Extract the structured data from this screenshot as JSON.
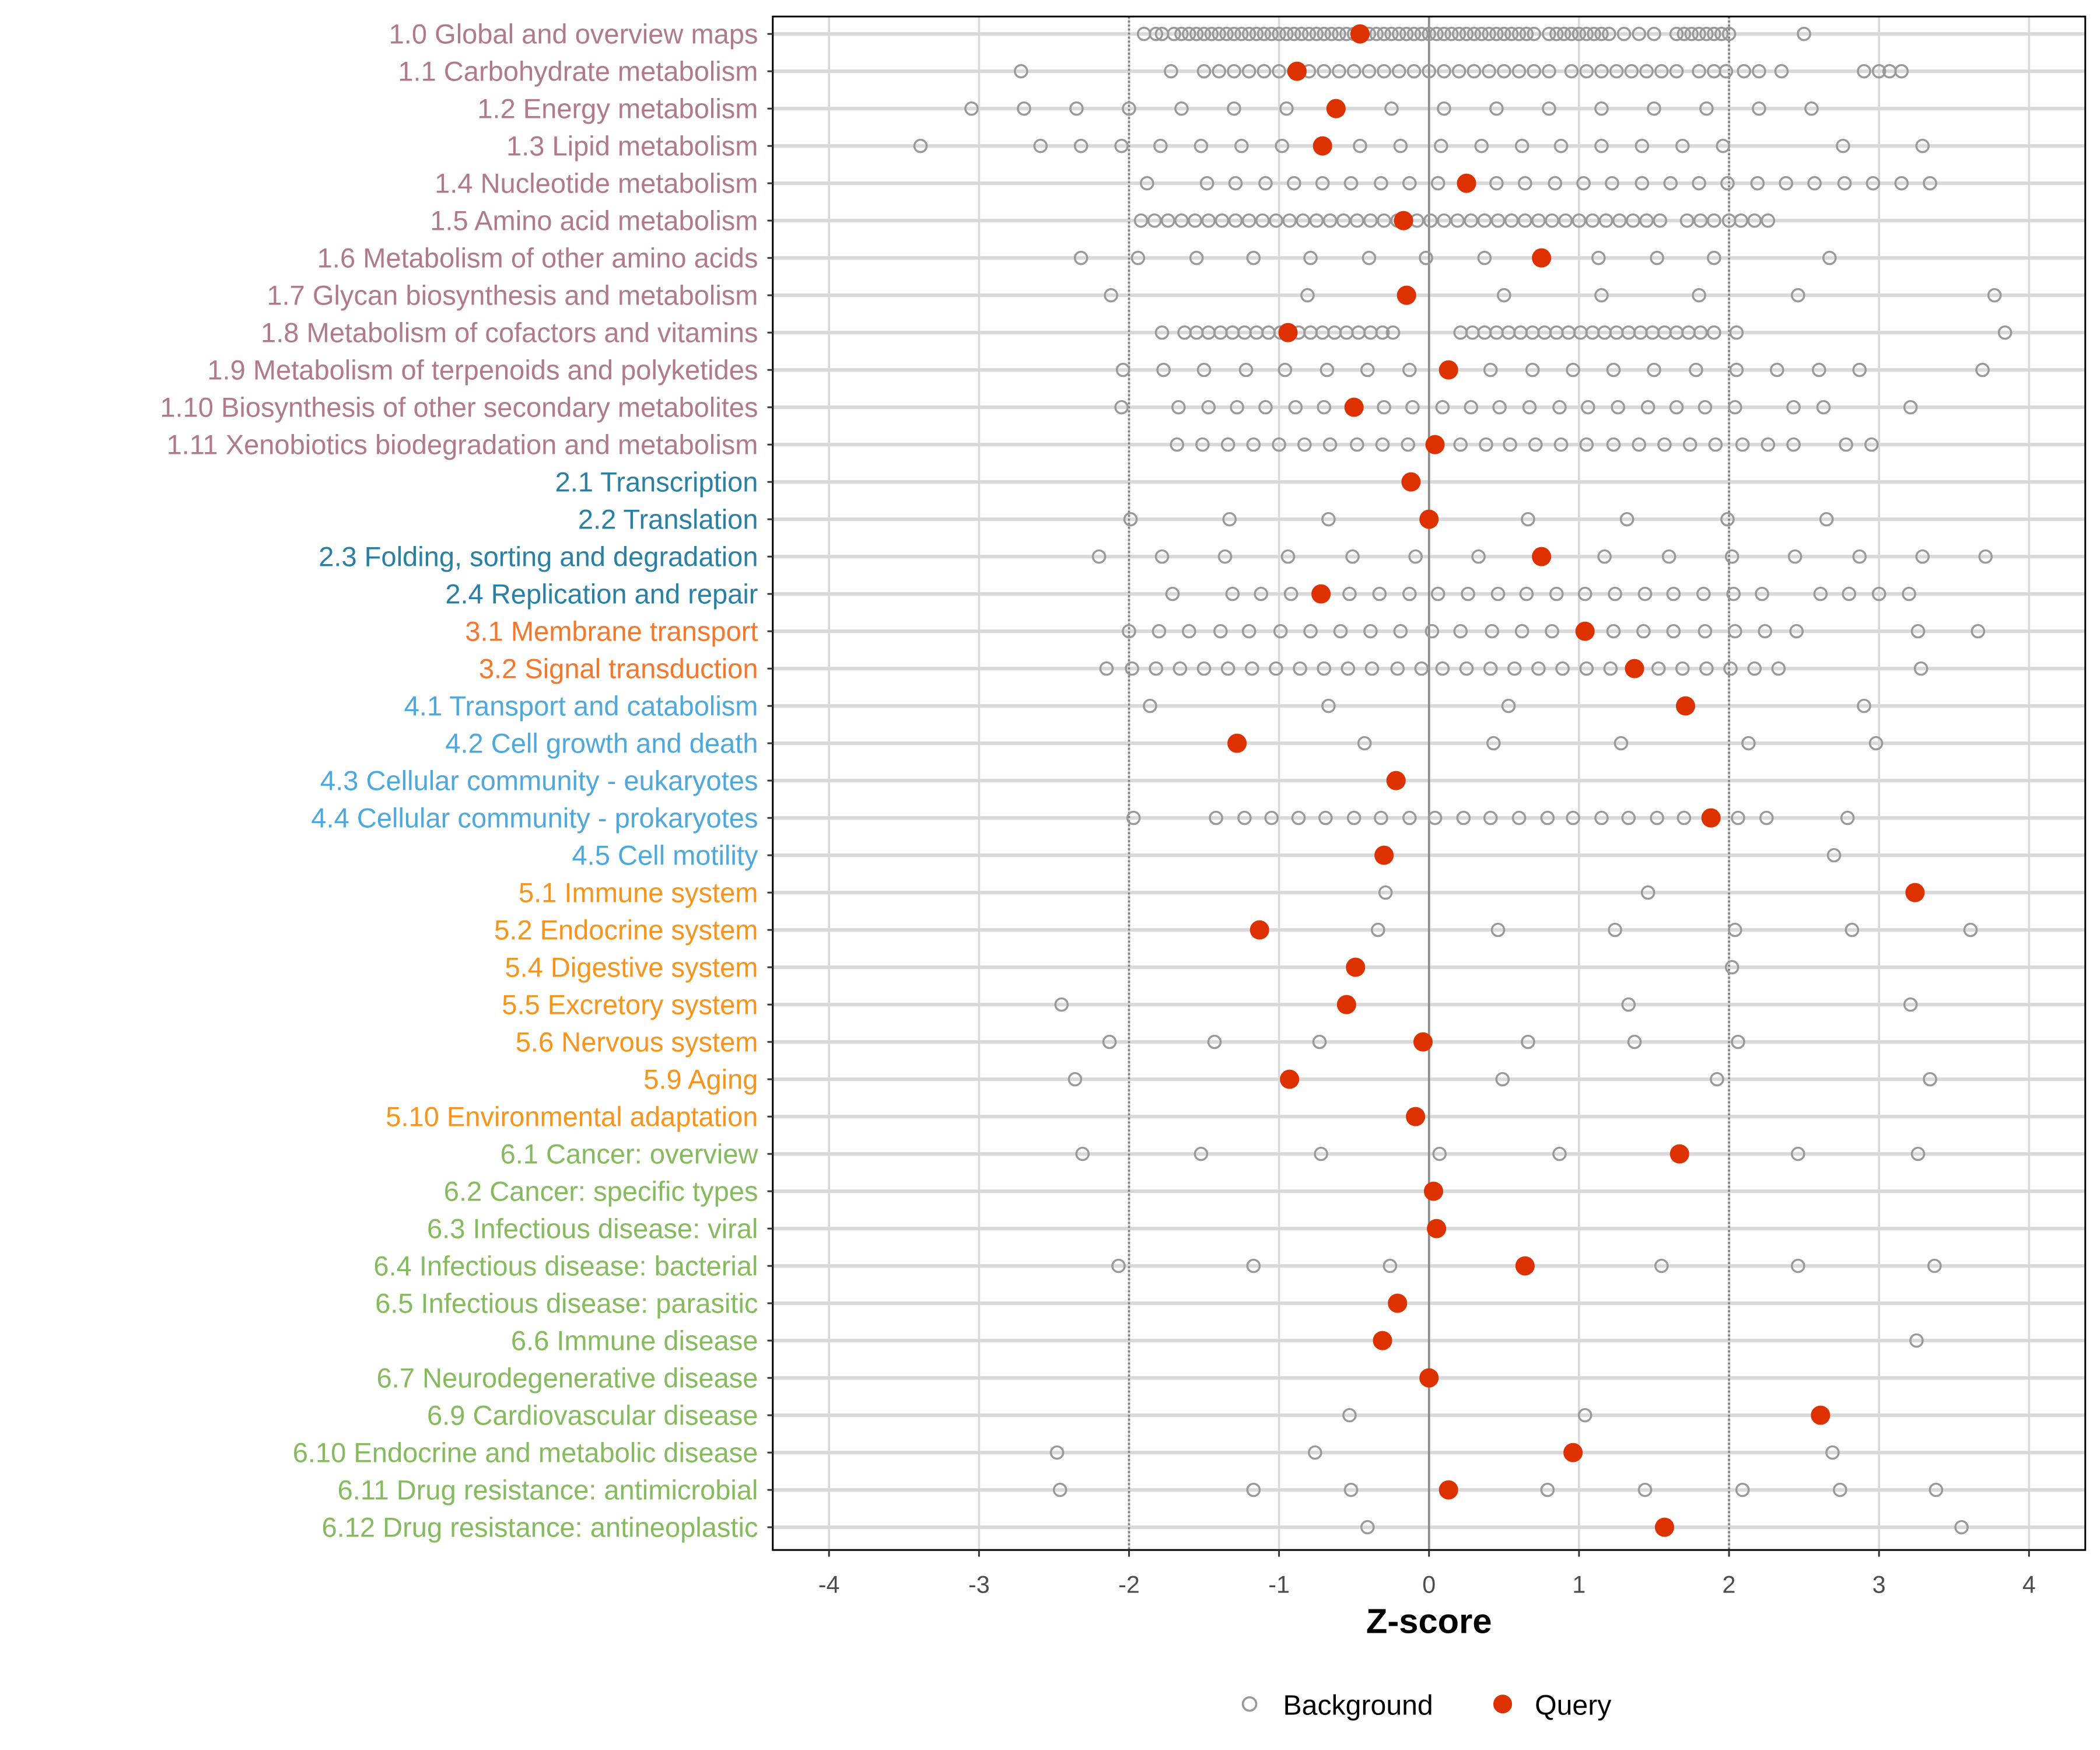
{
  "chart_data": {
    "type": "scatter",
    "xlabel": "Z-score",
    "xlim": [
      -4.5,
      4.3
    ],
    "xticks": [
      -4,
      -3,
      -2,
      -1,
      0,
      1,
      2,
      3,
      4
    ],
    "xtick_labels": [
      "-4",
      "-3",
      "-2",
      "-1",
      "0",
      "1",
      "2",
      "3",
      "4"
    ],
    "reference_lines": {
      "solid": [
        0
      ],
      "dotted": [
        -2,
        2
      ]
    },
    "grid": true,
    "legend": {
      "placement": "bottom",
      "entries": [
        "Background",
        "Query"
      ]
    },
    "colors": {
      "query": "#DD3100",
      "background": "#999999",
      "groups": {
        "1": "#B07A89",
        "2": "#2A7FA5",
        "3": "#F4772E",
        "4": "#4EA8DC",
        "5": "#F7941D",
        "6": "#86BA5E"
      }
    },
    "rows": [
      {
        "label": "1.0 Global and overview maps",
        "group": "1",
        "query": -0.46,
        "background": [
          -1.9,
          -1.82,
          -1.78,
          -1.7,
          -1.65,
          -1.6,
          -1.55,
          -1.5,
          -1.45,
          -1.4,
          -1.35,
          -1.3,
          -1.25,
          -1.2,
          -1.15,
          -1.1,
          -1.05,
          -1.0,
          -0.95,
          -0.9,
          -0.85,
          -0.8,
          -0.75,
          -0.7,
          -0.65,
          -0.6,
          -0.55,
          -0.5,
          -0.45,
          -0.4,
          -0.35,
          -0.3,
          -0.25,
          -0.2,
          -0.15,
          -0.1,
          -0.05,
          0,
          0.05,
          0.1,
          0.15,
          0.2,
          0.25,
          0.3,
          0.35,
          0.4,
          0.45,
          0.5,
          0.55,
          0.6,
          0.65,
          0.7,
          0.8,
          0.85,
          0.9,
          0.95,
          1.0,
          1.05,
          1.1,
          1.15,
          1.2,
          1.3,
          1.4,
          1.5,
          1.65,
          1.7,
          1.75,
          1.8,
          1.85,
          1.9,
          1.95,
          2.0,
          2.5
        ]
      },
      {
        "label": "1.1 Carbohydrate metabolism",
        "group": "1",
        "query": -0.88,
        "background": [
          -2.72,
          -1.72,
          -1.5,
          -1.4,
          -1.3,
          -1.2,
          -1.1,
          -1.0,
          -0.9,
          -0.8,
          -0.7,
          -0.6,
          -0.5,
          -0.4,
          -0.3,
          -0.2,
          -0.1,
          0,
          0.1,
          0.2,
          0.3,
          0.4,
          0.5,
          0.6,
          0.7,
          0.8,
          0.95,
          1.05,
          1.15,
          1.25,
          1.35,
          1.45,
          1.55,
          1.65,
          1.8,
          1.9,
          1.98,
          2.1,
          2.2,
          2.35,
          2.9,
          3.0,
          3.07,
          3.15
        ]
      },
      {
        "label": "1.2 Energy metabolism",
        "group": "1",
        "query": -0.62,
        "background": [
          -3.05,
          -2.7,
          -2.35,
          -2.0,
          -1.65,
          -1.3,
          -0.95,
          -0.25,
          0.1,
          0.45,
          0.8,
          1.15,
          1.5,
          1.85,
          2.2,
          2.55
        ]
      },
      {
        "label": "1.3 Lipid metabolism",
        "group": "1",
        "query": -0.71,
        "background": [
          -3.39,
          -2.59,
          -2.32,
          -2.05,
          -1.79,
          -1.52,
          -1.25,
          -0.98,
          -0.46,
          -0.19,
          0.08,
          0.35,
          0.62,
          0.88,
          1.15,
          1.42,
          1.69,
          1.96,
          2.76,
          3.29
        ]
      },
      {
        "label": "1.4 Nucleotide metabolism",
        "group": "1",
        "query": 0.25,
        "background": [
          -1.88,
          -1.48,
          -1.29,
          -1.09,
          -0.9,
          -0.71,
          -0.52,
          -0.32,
          -0.13,
          0.06,
          0.45,
          0.64,
          0.84,
          1.03,
          1.22,
          1.42,
          1.61,
          1.8,
          1.99,
          2.19,
          2.38,
          2.57,
          2.77,
          2.96,
          3.15,
          3.34
        ]
      },
      {
        "label": "1.5 Amino acid metabolism",
        "group": "1",
        "query": -0.17,
        "background": [
          -1.92,
          -1.83,
          -1.74,
          -1.65,
          -1.56,
          -1.47,
          -1.38,
          -1.29,
          -1.2,
          -1.11,
          -1.02,
          -0.93,
          -0.84,
          -0.75,
          -0.66,
          -0.57,
          -0.48,
          -0.39,
          -0.3,
          -0.21,
          -0.08,
          0.01,
          0.1,
          0.19,
          0.28,
          0.37,
          0.46,
          0.55,
          0.64,
          0.73,
          0.82,
          0.91,
          1.0,
          1.09,
          1.18,
          1.27,
          1.36,
          1.45,
          1.54,
          1.72,
          1.81,
          1.9,
          2.0,
          2.08,
          2.17,
          2.26
        ]
      },
      {
        "label": "1.6 Metabolism of other amino acids",
        "group": "1",
        "query": 0.75,
        "background": [
          -2.32,
          -1.94,
          -1.55,
          -1.17,
          -0.79,
          -0.4,
          -0.02,
          0.37,
          1.13,
          1.52,
          1.9,
          2.67
        ]
      },
      {
        "label": "1.7 Glycan biosynthesis and metabolism",
        "group": "1",
        "query": -0.15,
        "background": [
          -2.12,
          -0.81,
          0.5,
          1.15,
          1.8,
          2.46,
          3.77
        ]
      },
      {
        "label": "1.8 Metabolism of cofactors and vitamins",
        "group": "1",
        "query": -0.94,
        "background": [
          -1.78,
          -1.63,
          -1.55,
          -1.47,
          -1.39,
          -1.31,
          -1.23,
          -1.15,
          -1.07,
          -0.99,
          -0.87,
          -0.79,
          -0.71,
          -0.63,
          -0.55,
          -0.47,
          -0.39,
          -0.31,
          -0.24,
          0.21,
          0.29,
          0.37,
          0.45,
          0.53,
          0.61,
          0.69,
          0.77,
          0.85,
          0.93,
          1.01,
          1.09,
          1.17,
          1.25,
          1.33,
          1.41,
          1.49,
          1.57,
          1.65,
          1.73,
          1.81,
          1.9,
          2.05,
          3.84
        ]
      },
      {
        "label": "1.9 Metabolism of terpenoids and polyketides",
        "group": "1",
        "query": 0.13,
        "background": [
          -2.04,
          -1.77,
          -1.5,
          -1.22,
          -0.96,
          -0.68,
          -0.41,
          -0.13,
          0.41,
          0.69,
          0.96,
          1.23,
          1.5,
          1.78,
          2.05,
          2.32,
          2.6,
          2.87,
          3.69
        ]
      },
      {
        "label": "1.10 Biosynthesis of other secondary metabolites",
        "group": "1",
        "query": -0.5,
        "background": [
          -2.05,
          -1.67,
          -1.47,
          -1.28,
          -1.09,
          -0.89,
          -0.7,
          -0.3,
          -0.11,
          0.09,
          0.28,
          0.47,
          0.67,
          0.87,
          1.06,
          1.26,
          1.46,
          1.65,
          1.84,
          2.04,
          2.43,
          2.63,
          3.21
        ]
      },
      {
        "label": "1.11 Xenobiotics biodegradation and metabolism",
        "group": "1",
        "query": 0.04,
        "background": [
          -1.68,
          -1.51,
          -1.34,
          -1.17,
          -1.0,
          -0.83,
          -0.66,
          -0.48,
          -0.31,
          -0.14,
          0.21,
          0.38,
          0.54,
          0.71,
          0.88,
          1.05,
          1.23,
          1.4,
          1.57,
          1.74,
          1.91,
          2.09,
          2.26,
          2.43,
          2.78,
          2.95
        ]
      },
      {
        "label": "2.1 Transcription",
        "group": "2",
        "query": -0.12,
        "background": []
      },
      {
        "label": "2.2 Translation",
        "group": "2",
        "query": 0.0,
        "background": [
          -1.99,
          -1.33,
          -0.67,
          0.66,
          1.32,
          1.99,
          2.65
        ]
      },
      {
        "label": "2.3 Folding, sorting and degradation",
        "group": "2",
        "query": 0.75,
        "background": [
          -2.2,
          -1.78,
          -1.36,
          -0.94,
          -0.51,
          -0.09,
          0.33,
          1.17,
          1.6,
          2.02,
          2.44,
          2.87,
          3.29,
          3.71
        ]
      },
      {
        "label": "2.4 Replication and repair",
        "group": "2",
        "query": -0.72,
        "background": [
          -1.71,
          -1.31,
          -1.12,
          -0.92,
          -0.53,
          -0.33,
          -0.13,
          0.06,
          0.26,
          0.46,
          0.65,
          0.85,
          1.04,
          1.24,
          1.44,
          1.63,
          1.83,
          2.03,
          2.22,
          2.61,
          2.8,
          3.0,
          3.2
        ]
      },
      {
        "label": "3.1 Membrane transport",
        "group": "3",
        "query": 1.04,
        "background": [
          -2.0,
          -1.8,
          -1.6,
          -1.39,
          -1.2,
          -0.99,
          -0.79,
          -0.59,
          -0.39,
          -0.19,
          0.02,
          0.21,
          0.42,
          0.62,
          0.82,
          1.23,
          1.43,
          1.63,
          1.84,
          2.04,
          2.24,
          2.45,
          3.26,
          3.66
        ]
      },
      {
        "label": "3.2 Signal transduction",
        "group": "3",
        "query": 1.37,
        "background": [
          -2.15,
          -1.98,
          -1.82,
          -1.66,
          -1.5,
          -1.34,
          -1.18,
          -1.02,
          -0.86,
          -0.7,
          -0.54,
          -0.38,
          -0.21,
          -0.05,
          0.09,
          0.25,
          0.41,
          0.57,
          0.73,
          0.89,
          1.05,
          1.21,
          1.53,
          1.69,
          1.85,
          2.01,
          2.17,
          2.33,
          3.28
        ]
      },
      {
        "label": "4.1 Transport and catabolism",
        "group": "4",
        "query": 1.71,
        "background": [
          -1.86,
          -0.67,
          0.53,
          2.9
        ]
      },
      {
        "label": "4.2 Cell growth and death",
        "group": "4",
        "query": -1.28,
        "background": [
          -0.43,
          0.43,
          1.28,
          2.13,
          2.98
        ]
      },
      {
        "label": "4.3 Cellular community - eukaryotes",
        "group": "4",
        "query": -0.22,
        "background": []
      },
      {
        "label": "4.4 Cellular community - prokaryotes",
        "group": "4",
        "query": 1.88,
        "background": [
          -1.97,
          -1.42,
          -1.23,
          -1.05,
          -0.87,
          -0.69,
          -0.5,
          -0.32,
          -0.13,
          0.04,
          0.23,
          0.41,
          0.6,
          0.79,
          0.96,
          1.15,
          1.33,
          1.52,
          1.7,
          2.06,
          2.25,
          2.79
        ]
      },
      {
        "label": "4.5 Cell motility",
        "group": "4",
        "query": -0.3,
        "background": [
          2.7
        ]
      },
      {
        "label": "5.1 Immune system",
        "group": "5",
        "query": 3.24,
        "background": [
          -0.29,
          1.46
        ]
      },
      {
        "label": "5.2 Endocrine system",
        "group": "5",
        "query": -1.13,
        "background": [
          -0.34,
          0.46,
          1.24,
          2.04,
          2.82,
          3.61
        ]
      },
      {
        "label": "5.4 Digestive system",
        "group": "5",
        "query": -0.49,
        "background": [
          2.02
        ]
      },
      {
        "label": "5.5 Excretory system",
        "group": "5",
        "query": -0.55,
        "background": [
          -2.45,
          1.33,
          3.21
        ]
      },
      {
        "label": "5.6 Nervous system",
        "group": "5",
        "query": -0.04,
        "background": [
          -2.13,
          -1.43,
          -0.73,
          0.66,
          1.37,
          2.06
        ]
      },
      {
        "label": "5.9 Aging",
        "group": "5",
        "query": -0.93,
        "background": [
          -2.36,
          0.49,
          1.92,
          3.34
        ]
      },
      {
        "label": "5.10 Environmental adaptation",
        "group": "5",
        "query": -0.09,
        "background": []
      },
      {
        "label": "6.1 Cancer: overview",
        "group": "6",
        "query": 1.67,
        "background": [
          -2.31,
          -1.52,
          -0.72,
          0.07,
          0.87,
          2.46,
          3.26
        ]
      },
      {
        "label": "6.2 Cancer: specific types",
        "group": "6",
        "query": 0.03,
        "background": []
      },
      {
        "label": "6.3 Infectious disease: viral",
        "group": "6",
        "query": 0.05,
        "background": []
      },
      {
        "label": "6.4 Infectious disease: bacterial",
        "group": "6",
        "query": 0.64,
        "background": [
          -2.07,
          -1.17,
          -0.26,
          1.55,
          2.46,
          3.37
        ]
      },
      {
        "label": "6.5 Infectious disease: parasitic",
        "group": "6",
        "query": -0.21,
        "background": []
      },
      {
        "label": "6.6 Immune disease",
        "group": "6",
        "query": -0.31,
        "background": [
          3.25
        ]
      },
      {
        "label": "6.7 Neurodegenerative disease",
        "group": "6",
        "query": 0.0,
        "background": []
      },
      {
        "label": "6.9 Cardiovascular disease",
        "group": "6",
        "query": 2.61,
        "background": [
          -0.53,
          1.04
        ]
      },
      {
        "label": "6.10 Endocrine and metabolic disease",
        "group": "6",
        "query": 0.96,
        "background": [
          -2.48,
          -0.76,
          2.69
        ]
      },
      {
        "label": "6.11 Drug resistance: antimicrobial",
        "group": "6",
        "query": 0.13,
        "background": [
          -2.46,
          -1.17,
          -0.52,
          0.79,
          1.44,
          2.09,
          2.74,
          3.38
        ]
      },
      {
        "label": "6.12 Drug resistance: antineoplastic",
        "group": "6",
        "query": 1.57,
        "background": [
          -0.41,
          3.55
        ]
      }
    ]
  }
}
